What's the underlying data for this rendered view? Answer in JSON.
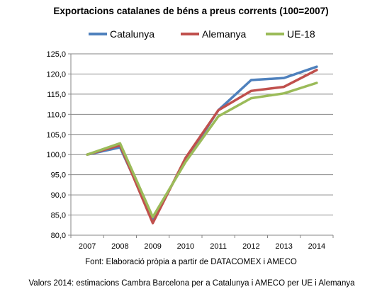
{
  "chart_data": {
    "type": "line",
    "title": "Exportacions catalanes de béns a preus corrents (100=2007)",
    "xlabel": "",
    "ylabel": "",
    "categories": [
      "2007",
      "2008",
      "2009",
      "2010",
      "2011",
      "2012",
      "2013",
      "2014"
    ],
    "ylim": [
      80,
      125
    ],
    "yticks": [
      "80,0",
      "85,0",
      "90,0",
      "95,0",
      "100,0",
      "105,0",
      "110,0",
      "115,0",
      "120,0",
      "125,0"
    ],
    "ytick_values": [
      80,
      85,
      90,
      95,
      100,
      105,
      110,
      115,
      120,
      125
    ],
    "grid": true,
    "legend_position": "top",
    "series": [
      {
        "name": "Catalunya",
        "color": "#4f81bd",
        "values": [
          100.0,
          101.8,
          84.0,
          98.5,
          111.0,
          118.5,
          119.0,
          121.8
        ]
      },
      {
        "name": "Alemanya",
        "color": "#c0504d",
        "values": [
          100.0,
          102.3,
          83.0,
          99.2,
          111.0,
          115.8,
          116.8,
          121.0
        ]
      },
      {
        "name": "UE-18",
        "color": "#9bbb59",
        "values": [
          100.0,
          102.8,
          84.5,
          98.2,
          109.5,
          114.0,
          115.2,
          117.8
        ]
      }
    ],
    "source": "Font: Elaboració pròpia a partir de DATACOMEX i AMECO"
  },
  "footer": {
    "note": "Valors 2014: estimacions Cambra Barcelona per a Catalunya i AMECO per UE i Alemanya"
  }
}
